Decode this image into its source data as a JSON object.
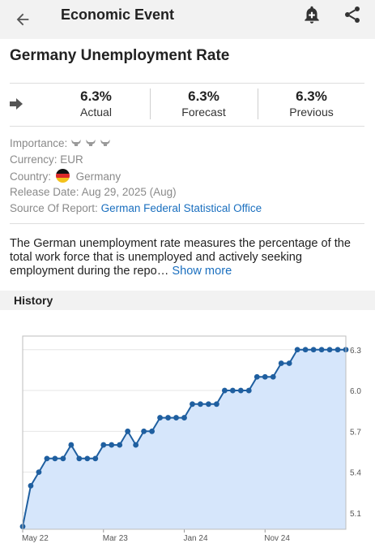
{
  "header": {
    "title": "Economic Event"
  },
  "event": {
    "title": "Germany Unemployment Rate",
    "actual": {
      "value": "6.3%",
      "label": "Actual"
    },
    "forecast": {
      "value": "6.3%",
      "label": "Forecast"
    },
    "previous": {
      "value": "6.3%",
      "label": "Previous"
    }
  },
  "details": {
    "importance_label": "Importance:",
    "importance_level": 3,
    "importance_max": 3,
    "currency_label": "Currency:",
    "currency": "EUR",
    "country_label": "Country:",
    "country": "Germany",
    "release_label": "Release Date:",
    "release_date": "Aug 29, 2025 (Aug)",
    "source_label": "Source Of Report:",
    "source": "German Federal Statistical Office"
  },
  "description": {
    "text": "The German unemployment rate measures the percentage of the total work force that is unemployed and actively seeking employment during the repo…",
    "show_more": "Show more"
  },
  "history": {
    "title": "History"
  },
  "colors": {
    "accent": "#1a6fbf",
    "line": "#1f5fa0",
    "area": "#d6e6fb",
    "topbar": "#f2f2f2"
  },
  "chart_data": {
    "type": "area",
    "x_tick_labels": [
      "May 22",
      "Mar 23",
      "Jan 24",
      "Nov 24"
    ],
    "y_ticks": [
      5.1,
      5.4,
      5.7,
      6.0,
      6.3
    ],
    "ylim": [
      4.98,
      6.4
    ],
    "grid": true,
    "series": [
      {
        "values": [
          5.0,
          5.3,
          5.4,
          5.5,
          5.5,
          5.5,
          5.6,
          5.5,
          5.5,
          5.5,
          5.6,
          5.6,
          5.6,
          5.7,
          5.6,
          5.7,
          5.7,
          5.8,
          5.8,
          5.8,
          5.8,
          5.9,
          5.9,
          5.9,
          5.9,
          6.0,
          6.0,
          6.0,
          6.0,
          6.1,
          6.1,
          6.1,
          6.2,
          6.2,
          6.3,
          6.3,
          6.3,
          6.3,
          6.3,
          6.3,
          6.3
        ]
      }
    ]
  }
}
